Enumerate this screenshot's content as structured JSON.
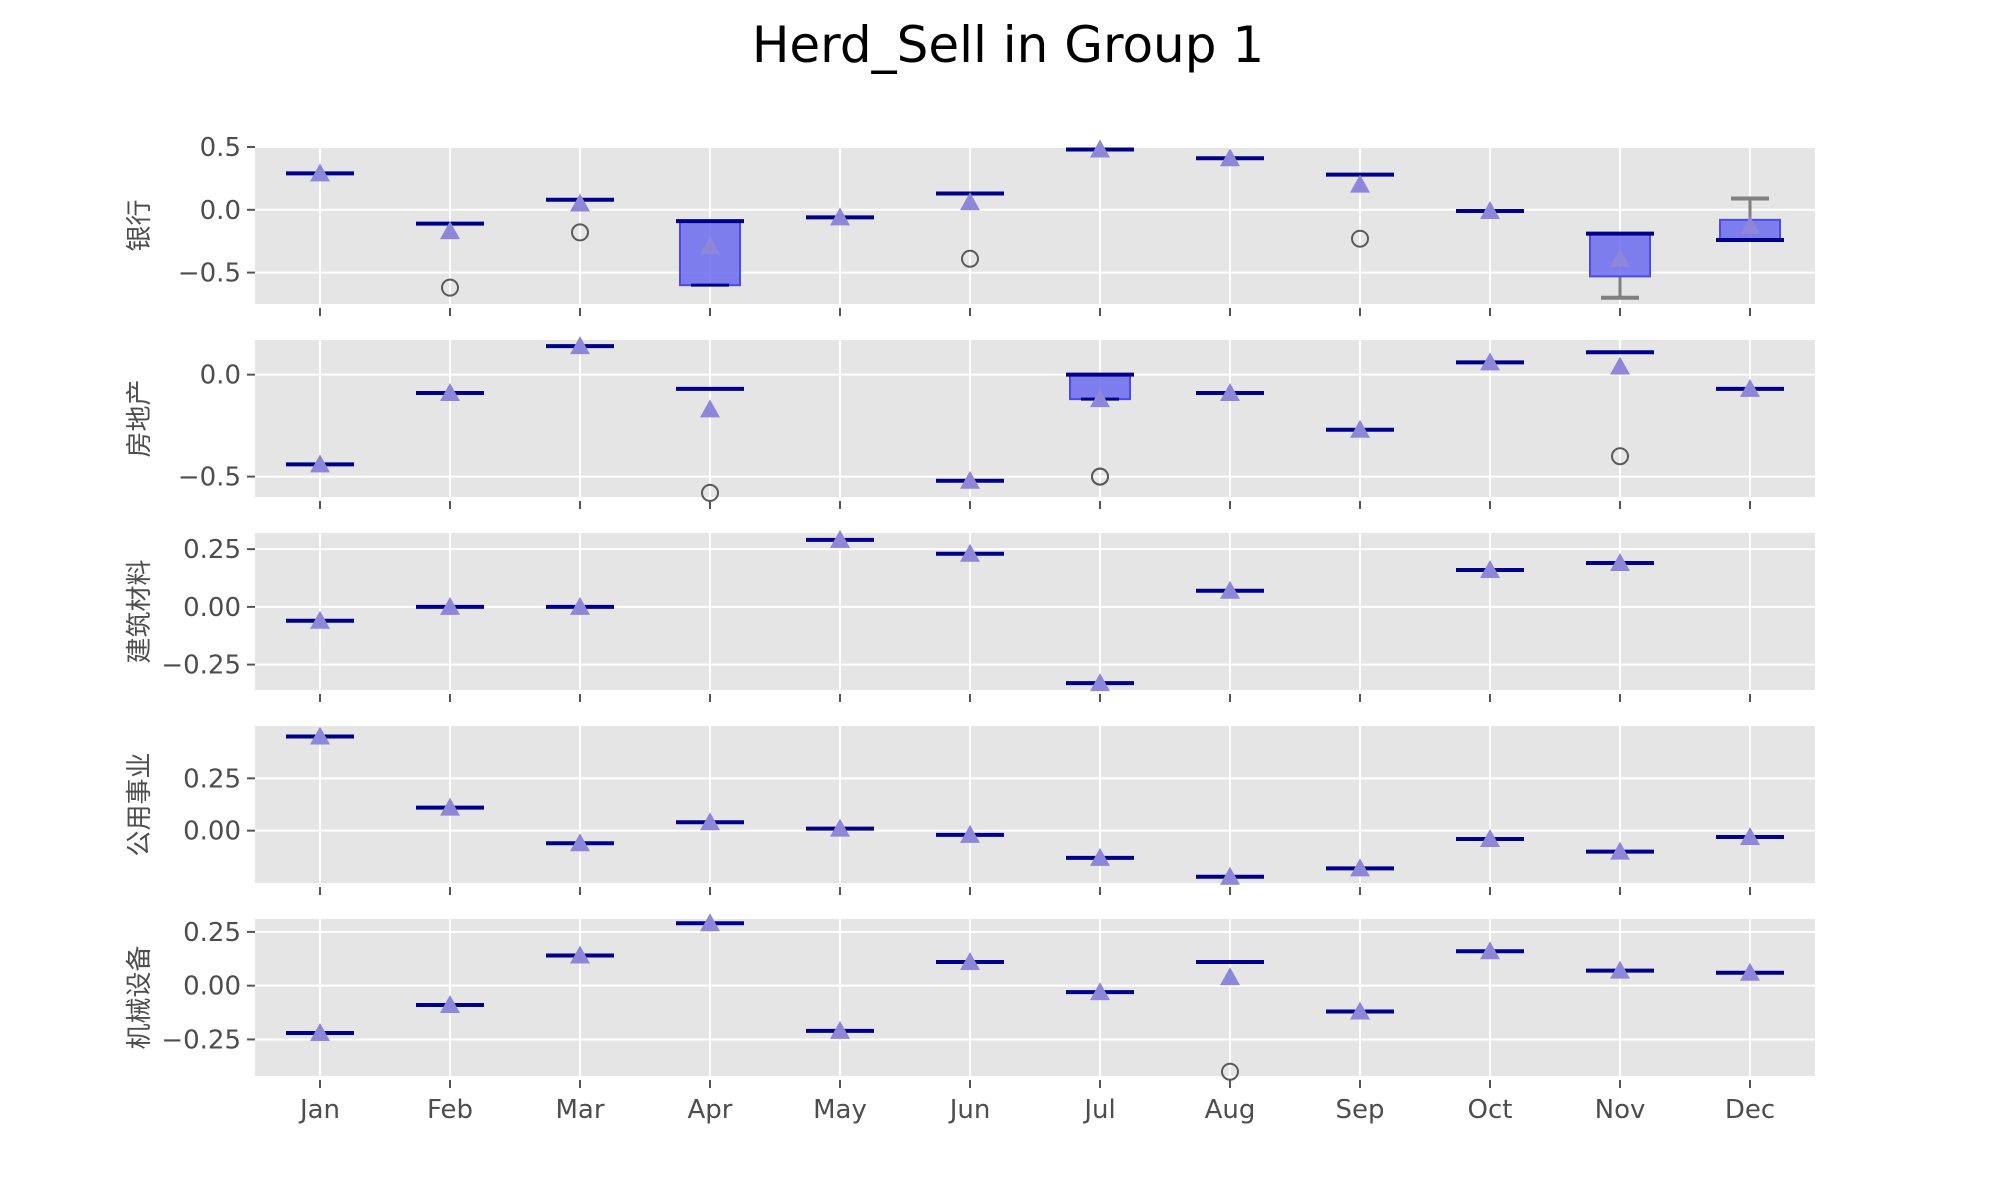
{
  "chart_data": {
    "type": "box",
    "title": "Herd_Sell in Group 1",
    "categories": [
      "Jan",
      "Feb",
      "Mar",
      "Apr",
      "May",
      "Jun",
      "Jul",
      "Aug",
      "Sep",
      "Oct",
      "Nov",
      "Dec"
    ],
    "colors": {
      "panel_bg": "#e5e5e5",
      "grid": "#ffffff",
      "box_fill": "#6b6bf0",
      "box_edge": "#4a4aee",
      "median": "#00008b",
      "mean_marker": "#8e86d8",
      "whisker": "#808080",
      "flier": "#5a5a5a"
    },
    "panels": [
      {
        "ylabel": "银行",
        "ylim": [
          -0.75,
          0.5
        ],
        "yticks": [
          0.5,
          0.0,
          -0.5
        ],
        "yticklabels": [
          "0.5",
          "0.0",
          "−0.5"
        ],
        "boxes": [
          {
            "median": 0.29,
            "mean": 0.29
          },
          {
            "median": -0.11,
            "mean": -0.17,
            "fliers": [
              -0.62
            ]
          },
          {
            "median": 0.08,
            "mean": 0.05,
            "fliers": [
              -0.18
            ]
          },
          {
            "q1": -0.6,
            "q3": -0.09,
            "median": -0.09,
            "mean": -0.29,
            "whislo": -0.6,
            "whishi": -0.09
          },
          {
            "median": -0.06,
            "mean": -0.06
          },
          {
            "median": 0.13,
            "mean": 0.06,
            "fliers": [
              -0.39
            ]
          },
          {
            "median": 0.48,
            "mean": 0.48
          },
          {
            "median": 0.41,
            "mean": 0.41
          },
          {
            "median": 0.28,
            "mean": 0.2,
            "fliers": [
              -0.23
            ]
          },
          {
            "median": -0.01,
            "mean": -0.01
          },
          {
            "q1": -0.53,
            "q3": -0.19,
            "median": -0.19,
            "mean": -0.39,
            "whislo": -0.7,
            "whishi": -0.19
          },
          {
            "q1": -0.24,
            "q3": -0.08,
            "median": -0.24,
            "mean": -0.13,
            "whislo": -0.24,
            "whishi": 0.09
          }
        ]
      },
      {
        "ylabel": "房地产",
        "ylim": [
          -0.6,
          0.17
        ],
        "yticks": [
          0.0,
          -0.5
        ],
        "yticklabels": [
          "0.0",
          "−0.5"
        ],
        "boxes": [
          {
            "median": -0.44,
            "mean": -0.44
          },
          {
            "median": -0.09,
            "mean": -0.09
          },
          {
            "median": 0.14,
            "mean": 0.14
          },
          {
            "median": -0.07,
            "mean": -0.17,
            "fliers": [
              -0.58
            ]
          },
          null,
          {
            "median": -0.52,
            "mean": -0.52
          },
          {
            "q1": -0.12,
            "q3": 0.0,
            "median": 0.0,
            "mean": -0.12,
            "whislo": -0.12,
            "whishi": 0.0,
            "fliers": [
              -0.5,
              -0.5
            ]
          },
          {
            "median": -0.09,
            "mean": -0.09
          },
          {
            "median": -0.27,
            "mean": -0.27
          },
          {
            "median": 0.06,
            "mean": 0.06
          },
          {
            "median": 0.11,
            "mean": 0.04,
            "fliers": [
              -0.4
            ]
          },
          {
            "median": -0.07,
            "mean": -0.07
          }
        ]
      },
      {
        "ylabel": "建筑材料",
        "ylim": [
          -0.36,
          0.32
        ],
        "yticks": [
          0.25,
          0.0,
          -0.25
        ],
        "yticklabels": [
          "0.25",
          "0.00",
          "−0.25"
        ],
        "boxes": [
          {
            "median": -0.06,
            "mean": -0.06
          },
          {
            "median": 0.0,
            "mean": 0.0
          },
          {
            "median": 0.0,
            "mean": 0.0
          },
          null,
          {
            "median": 0.29,
            "mean": 0.29
          },
          {
            "median": 0.23,
            "mean": 0.23
          },
          {
            "median": -0.33,
            "mean": -0.33
          },
          {
            "median": 0.07,
            "mean": 0.07
          },
          null,
          {
            "median": 0.16,
            "mean": 0.16
          },
          {
            "median": 0.19,
            "mean": 0.19
          },
          null
        ]
      },
      {
        "ylabel": "公用事业",
        "ylim": [
          -0.25,
          0.5
        ],
        "yticks": [
          0.25,
          0.0
        ],
        "yticklabels": [
          "0.25",
          "0.00"
        ],
        "boxes": [
          {
            "median": 0.45,
            "mean": 0.45
          },
          {
            "median": 0.11,
            "mean": 0.11
          },
          {
            "median": -0.06,
            "mean": -0.06
          },
          {
            "median": 0.04,
            "mean": 0.04
          },
          {
            "median": 0.01,
            "mean": 0.01
          },
          {
            "median": -0.02,
            "mean": -0.02
          },
          {
            "median": -0.13,
            "mean": -0.13
          },
          {
            "median": -0.22,
            "mean": -0.22
          },
          {
            "median": -0.18,
            "mean": -0.18
          },
          {
            "median": -0.04,
            "mean": -0.04
          },
          {
            "median": -0.1,
            "mean": -0.1
          },
          {
            "median": -0.03,
            "mean": -0.03
          }
        ]
      },
      {
        "ylabel": "机械设备",
        "ylim": [
          -0.42,
          0.31
        ],
        "yticks": [
          0.25,
          0.0,
          -0.25
        ],
        "yticklabels": [
          "0.25",
          "0.00",
          "−0.25"
        ],
        "boxes": [
          {
            "median": -0.22,
            "mean": -0.22
          },
          {
            "median": -0.09,
            "mean": -0.09
          },
          {
            "median": 0.14,
            "mean": 0.14
          },
          {
            "median": 0.29,
            "mean": 0.29
          },
          {
            "median": -0.21,
            "mean": -0.21
          },
          {
            "median": 0.11,
            "mean": 0.11
          },
          {
            "median": -0.03,
            "mean": -0.03
          },
          {
            "median": 0.11,
            "mean": 0.04,
            "fliers": [
              -0.4
            ]
          },
          {
            "median": -0.12,
            "mean": -0.12
          },
          {
            "median": 0.16,
            "mean": 0.16
          },
          {
            "median": 0.07,
            "mean": 0.07
          },
          {
            "median": 0.06,
            "mean": 0.06
          }
        ]
      }
    ]
  }
}
